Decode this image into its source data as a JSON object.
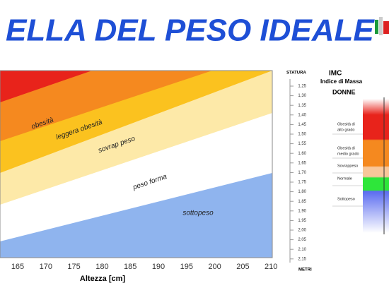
{
  "header": {
    "title": "ELLA DEL PESO IDEALE"
  },
  "chart": {
    "bands": [
      "obesità",
      "leggera obesità",
      "sovrap peso",
      "peso forma",
      "sottopeso"
    ],
    "x_ticks": [
      "165",
      "170",
      "175",
      "180",
      "185",
      "190",
      "195",
      "200",
      "205",
      "210"
    ],
    "x_label": "Altezza [cm]"
  },
  "scale": {
    "header": "STATURA",
    "ticks": [
      "1,25",
      "1,30",
      "1,35",
      "1,40",
      "1,45",
      "1,50",
      "1,55",
      "1,60",
      "1,65",
      "1,70",
      "1,75",
      "1,80",
      "1,85",
      "1,90",
      "1,95",
      "2,00",
      "2,05",
      "2,10",
      "2,15"
    ],
    "footer": "METRI"
  },
  "imc": {
    "title": "IMC",
    "subtitle": "Indice di Massa",
    "group": "DONNE",
    "categories": [
      [
        "Obesità di",
        "alto grado"
      ],
      [
        "Obesità di",
        "medio grado"
      ],
      [
        "Sovrappeso"
      ],
      [
        "Normale"
      ],
      [
        "Sottopeso"
      ]
    ]
  }
}
